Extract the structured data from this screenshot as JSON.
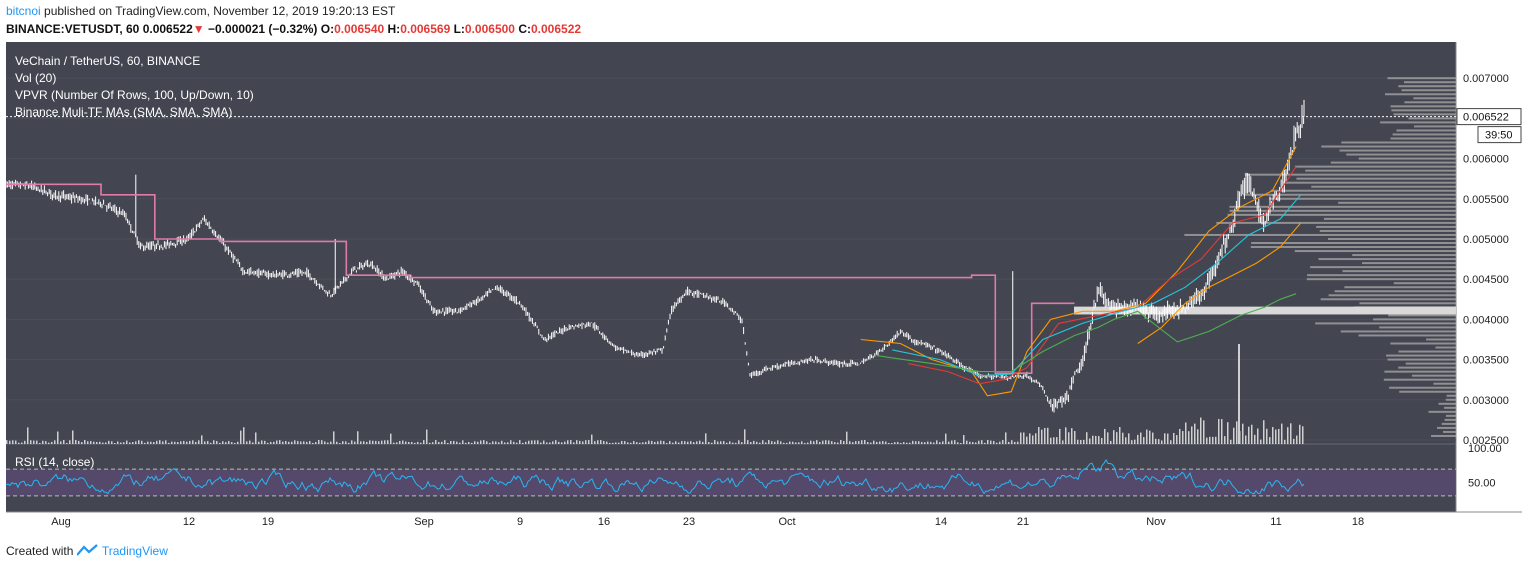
{
  "header": {
    "author": "bitcnoi",
    "published_text": "published on TradingView.com, November 12, 2019 19:20:13 EST",
    "symbol": "BINANCE:VETUSDT, 60",
    "last": "0.006522",
    "change_arrow": "▼",
    "change": "−0.000021 (−0.32%)",
    "o_label": "O:",
    "o": "0.006540",
    "h_label": "H:",
    "h": "0.006569",
    "l_label": "L:",
    "l": "0.006500",
    "c_label": "C:",
    "c": "0.006522"
  },
  "legend": {
    "title": "VeChain / TetherUS, 60, BINANCE",
    "vol": "Vol (20)",
    "vpvr": "VPVR (Number Of Rows, 100, Up/Down, 10)",
    "mas": "Binance Muli-TF MAs (SMA, SMA, SMA)",
    "rsi": "RSI (14, close)"
  },
  "price_badge": "0.006522",
  "countdown_badge": "39:50",
  "footer": {
    "created_with": "Created with",
    "brand": "TradingView"
  },
  "colors": {
    "background": "#434651",
    "candle": "#ffffff",
    "pink_ma": "#e07aa8",
    "orange_ma": "#ff9800",
    "green_ma": "#4caf50",
    "cyan_ma": "#26c6da",
    "red_ma": "#e53935",
    "rsi_line": "#29b6f6",
    "rsi_band": "#5b4a75",
    "vpvr": "#9e9e9e"
  },
  "chart_data": {
    "type": "line",
    "x_ticks": [
      "Aug",
      "12",
      "19",
      "Sep",
      "9",
      "16",
      "23",
      "Oct",
      "14",
      "21",
      "Nov",
      "11",
      "18"
    ],
    "y_ticks": [
      "0.007000",
      "0.006500",
      "0.006000",
      "0.005500",
      "0.005000",
      "0.004500",
      "0.004000",
      "0.003500",
      "0.003000",
      "0.002500"
    ],
    "ylim": [
      0.00245,
      0.00745
    ],
    "rsi_ticks": [
      "100.00",
      "50.00"
    ],
    "rsi_levels": [
      70,
      30
    ],
    "price_path": [
      [
        0.0,
        0.00568
      ],
      [
        1.5,
        0.00566
      ],
      [
        3.0,
        0.00555
      ],
      [
        4.5,
        0.0055
      ],
      [
        6.0,
        0.00545
      ],
      [
        7.5,
        0.0053
      ],
      [
        8.5,
        0.0049
      ],
      [
        10.0,
        0.00492
      ],
      [
        11.5,
        0.005
      ],
      [
        12.5,
        0.00525
      ],
      [
        13.5,
        0.005
      ],
      [
        15.0,
        0.0046
      ],
      [
        17.0,
        0.00455
      ],
      [
        19.0,
        0.00458
      ],
      [
        20.5,
        0.0043
      ],
      [
        22.0,
        0.00462
      ],
      [
        23.0,
        0.0047
      ],
      [
        24.0,
        0.0045
      ],
      [
        25.0,
        0.0046
      ],
      [
        26.0,
        0.00445
      ],
      [
        27.0,
        0.0041
      ],
      [
        28.5,
        0.0041
      ],
      [
        30.0,
        0.00425
      ],
      [
        31.0,
        0.0044
      ],
      [
        32.5,
        0.0042
      ],
      [
        34.0,
        0.00375
      ],
      [
        35.5,
        0.0039
      ],
      [
        37.0,
        0.00395
      ],
      [
        38.5,
        0.00365
      ],
      [
        40.0,
        0.00355
      ],
      [
        41.5,
        0.00362
      ],
      [
        42.0,
        0.0041
      ],
      [
        43.0,
        0.00435
      ],
      [
        44.0,
        0.0043
      ],
      [
        45.5,
        0.0042
      ],
      [
        46.5,
        0.00398
      ],
      [
        47.0,
        0.0033
      ],
      [
        48.0,
        0.00338
      ],
      [
        49.5,
        0.00345
      ],
      [
        51.0,
        0.0035
      ],
      [
        52.5,
        0.00345
      ],
      [
        54.0,
        0.00345
      ],
      [
        55.5,
        0.00365
      ],
      [
        56.5,
        0.00385
      ],
      [
        57.5,
        0.00372
      ],
      [
        58.5,
        0.00365
      ],
      [
        59.5,
        0.00355
      ],
      [
        60.5,
        0.0034
      ],
      [
        61.5,
        0.0033
      ],
      [
        63.0,
        0.00328
      ],
      [
        64.5,
        0.0033
      ],
      [
        65.5,
        0.00315
      ],
      [
        66.0,
        0.00292
      ],
      [
        67.0,
        0.003
      ],
      [
        67.5,
        0.0033
      ],
      [
        68.0,
        0.00345
      ],
      [
        68.5,
        0.0039
      ],
      [
        69.0,
        0.0044
      ],
      [
        69.5,
        0.0042
      ],
      [
        70.5,
        0.00412
      ],
      [
        71.5,
        0.00418
      ],
      [
        72.5,
        0.00405
      ],
      [
        73.5,
        0.0041
      ],
      [
        74.5,
        0.00415
      ],
      [
        75.5,
        0.0043
      ],
      [
        76.5,
        0.0047
      ],
      [
        77.5,
        0.0052
      ],
      [
        78.0,
        0.0056
      ],
      [
        78.5,
        0.0057
      ],
      [
        79.0,
        0.0054
      ],
      [
        79.5,
        0.0052
      ],
      [
        80.0,
        0.00545
      ],
      [
        80.5,
        0.0056
      ],
      [
        81.0,
        0.0059
      ],
      [
        81.5,
        0.00635
      ],
      [
        82.0,
        0.00652
      ]
    ],
    "series": [
      {
        "name": "",
        "key": "pink",
        "points": [
          [
            0.0,
            0.00568
          ],
          [
            6.0,
            0.00568
          ],
          [
            6.0,
            0.00555
          ],
          [
            9.4,
            0.00555
          ],
          [
            9.4,
            0.005
          ],
          [
            13.5,
            0.005
          ],
          [
            13.5,
            0.00497
          ],
          [
            21.5,
            0.00497
          ],
          [
            21.5,
            0.00455
          ],
          [
            25.5,
            0.00455
          ],
          [
            25.5,
            0.00452
          ],
          [
            61.0,
            0.00452
          ],
          [
            61.0,
            0.00455
          ],
          [
            62.5,
            0.00455
          ],
          [
            62.5,
            0.00333
          ],
          [
            64.8,
            0.00333
          ],
          [
            64.8,
            0.0042
          ],
          [
            67.5,
            0.0042
          ]
        ]
      },
      {
        "name": "",
        "key": "orange",
        "points": [
          [
            54.0,
            0.00375
          ],
          [
            56.5,
            0.0037
          ],
          [
            58.5,
            0.0035
          ],
          [
            61.0,
            0.00335
          ],
          [
            62.0,
            0.00305
          ],
          [
            63.5,
            0.0031
          ],
          [
            64.5,
            0.0036
          ],
          [
            66.0,
            0.004
          ],
          [
            68.0,
            0.0041
          ],
          [
            70.0,
            0.0041
          ],
          [
            72.0,
            0.0042
          ],
          [
            74.0,
            0.0046
          ],
          [
            76.0,
            0.0051
          ],
          [
            78.0,
            0.0054
          ],
          [
            80.0,
            0.0056
          ],
          [
            81.5,
            0.00615
          ]
        ]
      },
      {
        "name": "",
        "key": "red",
        "points": [
          [
            57.0,
            0.00345
          ],
          [
            59.5,
            0.00335
          ],
          [
            61.5,
            0.0032
          ],
          [
            63.0,
            0.00325
          ],
          [
            64.5,
            0.0034
          ],
          [
            66.5,
            0.00395
          ],
          [
            69.0,
            0.00405
          ],
          [
            71.5,
            0.00415
          ],
          [
            73.5,
            0.0045
          ],
          [
            75.5,
            0.00475
          ],
          [
            77.5,
            0.0052
          ],
          [
            79.5,
            0.0053
          ],
          [
            81.5,
            0.0059
          ]
        ]
      },
      {
        "name": "",
        "key": "cyan",
        "points": [
          [
            56.0,
            0.00362
          ],
          [
            59.0,
            0.0035
          ],
          [
            61.5,
            0.0033
          ],
          [
            63.5,
            0.00332
          ],
          [
            65.5,
            0.00375
          ],
          [
            68.0,
            0.00395
          ],
          [
            70.5,
            0.0041
          ],
          [
            72.5,
            0.0042
          ],
          [
            74.5,
            0.0044
          ],
          [
            76.5,
            0.0047
          ],
          [
            78.5,
            0.00505
          ],
          [
            80.5,
            0.00525
          ],
          [
            81.8,
            0.00555
          ]
        ]
      },
      {
        "name": "",
        "key": "green",
        "points": [
          [
            55.0,
            0.00355
          ],
          [
            58.5,
            0.00345
          ],
          [
            61.5,
            0.00335
          ],
          [
            63.5,
            0.00335
          ],
          [
            65.5,
            0.0036
          ],
          [
            67.5,
            0.0038
          ],
          [
            69.0,
            0.0039
          ],
          [
            70.0,
            0.004
          ],
          [
            71.5,
            0.0041
          ],
          [
            74.0,
            0.00372
          ],
          [
            76.0,
            0.00385
          ],
          [
            78.0,
            0.00405
          ],
          [
            79.5,
            0.00415
          ],
          [
            80.5,
            0.00425
          ],
          [
            81.5,
            0.00432
          ]
        ]
      },
      {
        "name": "",
        "key": "orange2",
        "points": [
          [
            71.5,
            0.0037
          ],
          [
            73.0,
            0.0039
          ],
          [
            74.5,
            0.0042
          ],
          [
            76.0,
            0.0044
          ],
          [
            77.5,
            0.00455
          ],
          [
            79.0,
            0.0047
          ],
          [
            80.5,
            0.0049
          ],
          [
            81.8,
            0.0052
          ]
        ]
      }
    ],
    "price_extremes": {
      "high": 0.00673,
      "low": 0.00288
    },
    "vpvr_key_level": 0.00413
  }
}
